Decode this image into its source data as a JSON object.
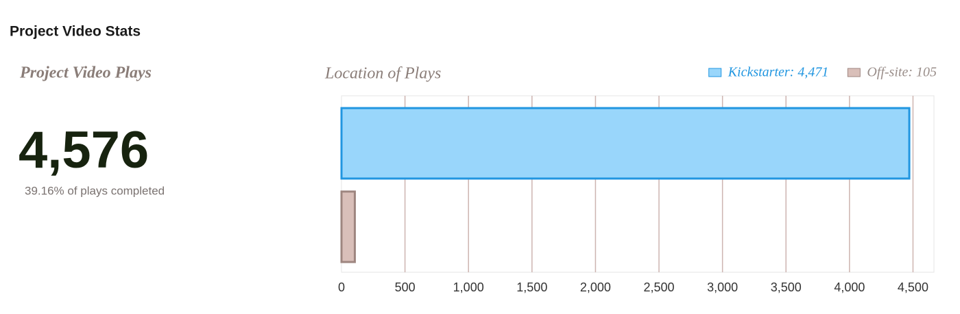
{
  "header": {
    "title": "Project Video Stats"
  },
  "summary": {
    "title": "Project Video Plays",
    "total": "4,576",
    "note": "39.16% of plays completed"
  },
  "chart_data": {
    "type": "hbar",
    "title": "Location of Plays",
    "categories": [
      null
    ],
    "series": [
      {
        "name": "Kickstarter: 4,471",
        "color": "#99d6fb",
        "stroke": "#2196e0",
        "values": [
          4471
        ]
      },
      {
        "name": "Off-site: 105",
        "color": "#d9bfb9",
        "stroke": "#9e8680",
        "values": [
          105
        ]
      }
    ],
    "xlim": [
      0,
      4665
    ],
    "xticks": [
      0,
      500,
      {
        "value": 1000,
        "label": "1,000"
      },
      {
        "value": 1500,
        "label": "1,500"
      },
      {
        "value": 2000,
        "label": "2,000"
      },
      {
        "value": 2500,
        "label": "2,500"
      },
      {
        "value": 3000,
        "label": "3,000"
      },
      {
        "value": 3500,
        "label": "3,500"
      },
      {
        "value": 4000,
        "label": "4,000"
      },
      {
        "value": 4500,
        "label": "4,500"
      }
    ],
    "grid": true
  }
}
